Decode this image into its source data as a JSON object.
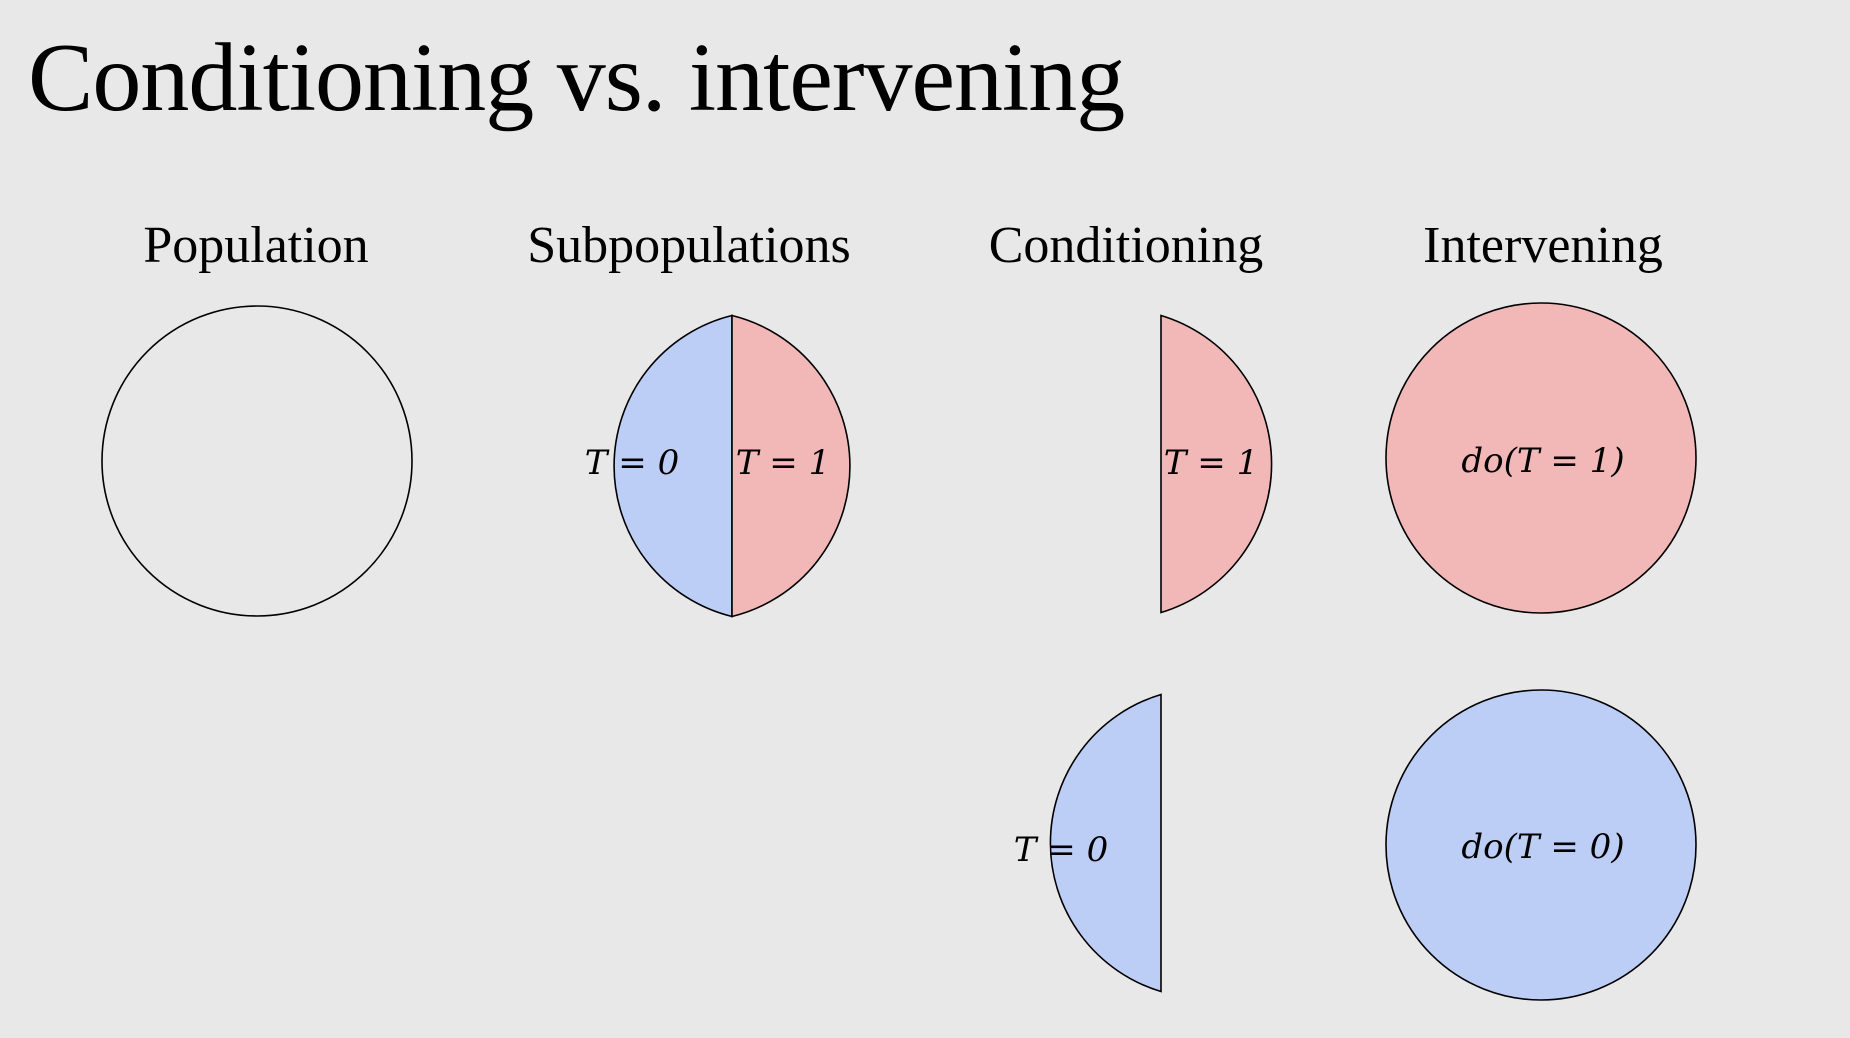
{
  "title": "Conditioning vs. intervening",
  "columns": [
    {
      "id": "population",
      "label": "Population"
    },
    {
      "id": "subpopulations",
      "label": "Subpopulations"
    },
    {
      "id": "conditioning",
      "label": "Conditioning"
    },
    {
      "id": "intervening",
      "label": "Intervening"
    }
  ],
  "labels": {
    "t0": "T = 0",
    "t1": "T = 1",
    "do_t1": "do(T = 1)",
    "do_t0": "do(T = 0)"
  },
  "colors": {
    "background": "#e8e8e8",
    "treated": "#f2b8b8",
    "control": "#bccdf6",
    "stroke": "#000000"
  }
}
